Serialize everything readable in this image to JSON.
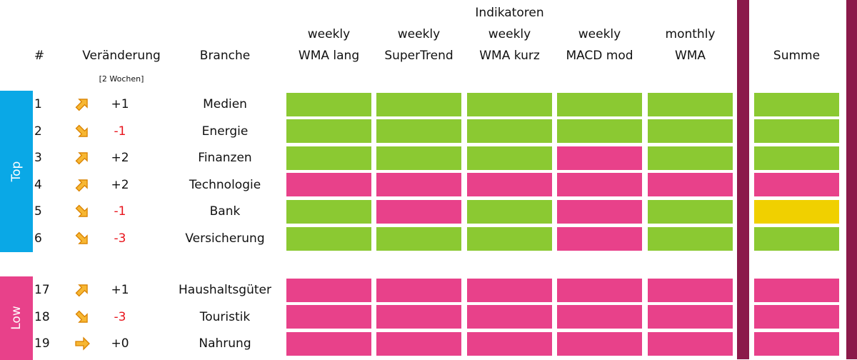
{
  "header": {
    "group_title": "Indikatoren",
    "rank": "#",
    "change": "Veränderung",
    "change_note": "[2 Wochen]",
    "sector": "Branche",
    "columns": [
      [
        "weekly",
        "WMA lang"
      ],
      [
        "weekly",
        "SuperTrend"
      ],
      [
        "weekly",
        "WMA kurz"
      ],
      [
        "weekly",
        "MACD mod"
      ],
      [
        "monthly",
        "WMA"
      ]
    ],
    "sum": "Summe"
  },
  "colors": {
    "up_group": "#0aa8e6",
    "low_group": "#e8418a",
    "separator": "#8b1a4a",
    "negative": "#e8141c"
  },
  "groups": [
    {
      "label": "Top",
      "rows": [
        {
          "rank": 1,
          "change": {
            "value": 1,
            "label": "+1"
          },
          "sector": "Medien",
          "signals": [
            "#8bc932",
            "#8bc932",
            "#8bc932",
            "#8bc932",
            "#8bc932"
          ],
          "sum": "#8bc932"
        },
        {
          "rank": 2,
          "change": {
            "value": -1,
            "label": "-1"
          },
          "sector": "Energie",
          "signals": [
            "#8bc932",
            "#8bc932",
            "#8bc932",
            "#8bc932",
            "#8bc932"
          ],
          "sum": "#8bc932"
        },
        {
          "rank": 3,
          "change": {
            "value": 2,
            "label": "+2"
          },
          "sector": "Finanzen",
          "signals": [
            "#8bc932",
            "#8bc932",
            "#8bc932",
            "#e8418a",
            "#8bc932"
          ],
          "sum": "#8bc932"
        },
        {
          "rank": 4,
          "change": {
            "value": 2,
            "label": "+2"
          },
          "sector": "Technologie",
          "signals": [
            "#e8418a",
            "#e8418a",
            "#e8418a",
            "#e8418a",
            "#e8418a"
          ],
          "sum": "#e8418a"
        },
        {
          "rank": 5,
          "change": {
            "value": -1,
            "label": "-1"
          },
          "sector": "Bank",
          "signals": [
            "#8bc932",
            "#e8418a",
            "#8bc932",
            "#e8418a",
            "#8bc932"
          ],
          "sum": "#f0d000"
        },
        {
          "rank": 6,
          "change": {
            "value": -3,
            "label": "-3"
          },
          "sector": "Versicherung",
          "signals": [
            "#8bc932",
            "#8bc932",
            "#8bc932",
            "#e8418a",
            "#8bc932"
          ],
          "sum": "#8bc932"
        }
      ]
    },
    {
      "label": "Low",
      "rows": [
        {
          "rank": 17,
          "change": {
            "value": 1,
            "label": "+1"
          },
          "sector": "Haushaltsgüter",
          "signals": [
            "#e8418a",
            "#e8418a",
            "#e8418a",
            "#e8418a",
            "#e8418a"
          ],
          "sum": "#e8418a"
        },
        {
          "rank": 18,
          "change": {
            "value": -3,
            "label": "-3"
          },
          "sector": "Touristik",
          "signals": [
            "#e8418a",
            "#e8418a",
            "#e8418a",
            "#e8418a",
            "#e8418a"
          ],
          "sum": "#e8418a"
        },
        {
          "rank": 19,
          "change": {
            "value": 0,
            "label": "+0"
          },
          "sector": "Nahrung",
          "signals": [
            "#e8418a",
            "#e8418a",
            "#e8418a",
            "#e8418a",
            "#e8418a"
          ],
          "sum": "#e8418a"
        }
      ]
    }
  ]
}
